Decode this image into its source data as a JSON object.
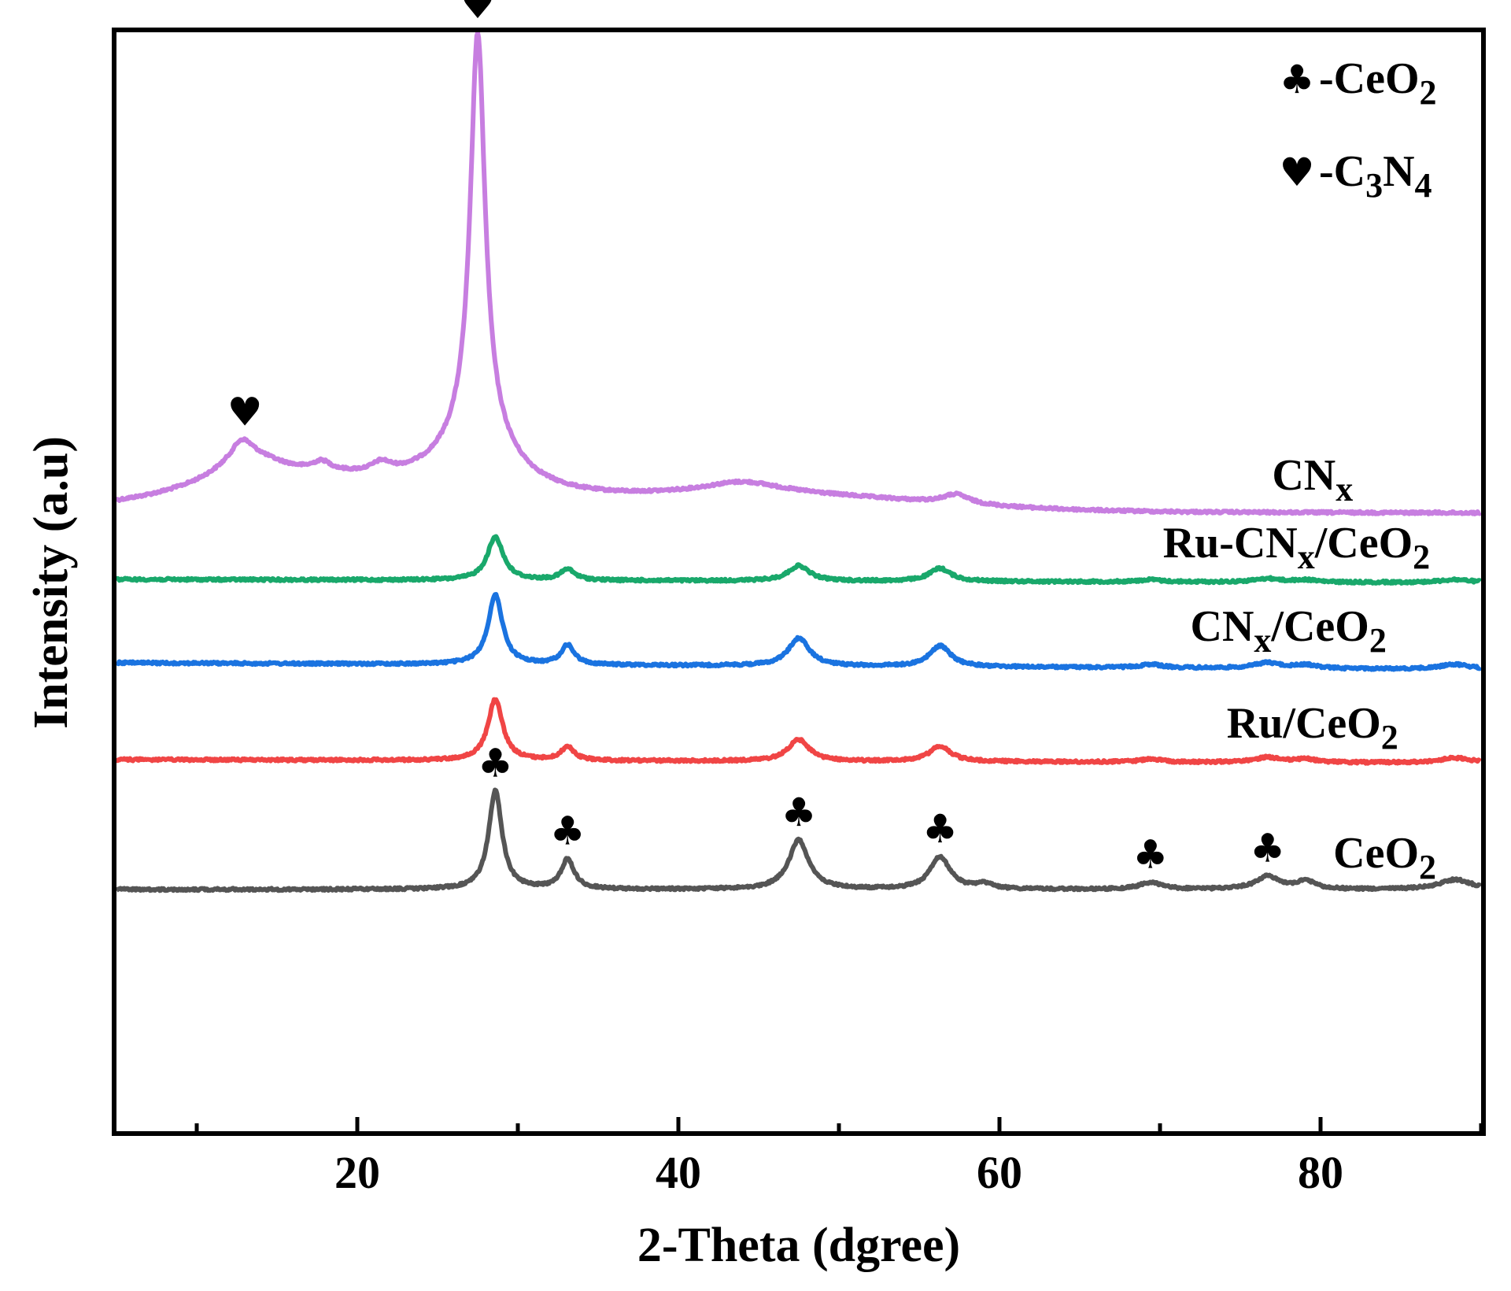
{
  "chart_data": {
    "type": "line",
    "title": "",
    "xlabel": "2-Theta (dgree)",
    "ylabel": "Intensity (a.u)",
    "xlim": [
      5,
      90
    ],
    "x_ticks": [
      20,
      40,
      60,
      80
    ],
    "x_tick_labels": [
      "20",
      "40",
      "60",
      "80"
    ],
    "grid": false,
    "legend": {
      "position": "top-right",
      "entries": [
        {
          "symbol": "♣",
          "name": "CeO",
          "sub": "2",
          "name2": "",
          "sub2": ""
        },
        {
          "symbol": "♥",
          "name": "C",
          "sub": "3",
          "name2": "N",
          "sub2": "4"
        }
      ]
    },
    "series": [
      {
        "name": "CN",
        "label_sub": "x",
        "label_rest": "",
        "label_rest_sub": "",
        "label_x": 79.5,
        "color": "#c77ee0",
        "baseline": 650,
        "scale": 3.0,
        "tail_slope": 0.02,
        "peaks": [
          {
            "x": 12.8,
            "h": 8,
            "w": 0.8
          },
          {
            "x": 13.2,
            "h": 12,
            "w": 2.8
          },
          {
            "x": 17.8,
            "h": 4,
            "w": 0.7
          },
          {
            "x": 21.5,
            "h": 4,
            "w": 0.7
          },
          {
            "x": 27.5,
            "h": 170,
            "w": 0.55
          },
          {
            "x": 27.5,
            "h": 25,
            "w": 2.6
          },
          {
            "x": 44.0,
            "h": 5,
            "w": 3.0
          },
          {
            "x": 57.3,
            "h": 4,
            "w": 1.0
          }
        ],
        "humps": [
          {
            "x": 18,
            "h": 12,
            "w": 8
          },
          {
            "x": 45,
            "h": 7,
            "w": 10
          }
        ]
      },
      {
        "name": "Ru-CN",
        "label_sub": "x",
        "label_rest": "/CeO",
        "label_rest_sub": "2",
        "label_x": 78.5,
        "color": "#19a86b",
        "baseline": 736,
        "scale": 0.55,
        "tail_slope": 0.05,
        "peaks": [
          {
            "x": 28.6,
            "h": 100,
            "w": 0.6
          },
          {
            "x": 33.1,
            "h": 25,
            "w": 0.55
          },
          {
            "x": 47.5,
            "h": 35,
            "w": 0.8
          },
          {
            "x": 56.3,
            "h": 30,
            "w": 0.8
          },
          {
            "x": 69.4,
            "h": 5,
            "w": 0.8
          },
          {
            "x": 76.7,
            "h": 8,
            "w": 1.0
          },
          {
            "x": 79.1,
            "h": 5,
            "w": 0.8
          },
          {
            "x": 88.4,
            "h": 7,
            "w": 1.2
          }
        ],
        "humps": []
      },
      {
        "name": "CN",
        "label_sub": "x",
        "label_rest": "/CeO",
        "label_rest_sub": "2",
        "label_x": 78.0,
        "color": "#1a73e0",
        "baseline": 842,
        "scale": 0.88,
        "tail_slope": 0.1,
        "peaks": [
          {
            "x": 28.6,
            "h": 100,
            "w": 0.55
          },
          {
            "x": 33.1,
            "h": 28,
            "w": 0.5
          },
          {
            "x": 47.5,
            "h": 40,
            "w": 0.8
          },
          {
            "x": 56.3,
            "h": 30,
            "w": 0.8
          },
          {
            "x": 69.4,
            "h": 5,
            "w": 0.8
          },
          {
            "x": 76.7,
            "h": 8,
            "w": 1.0
          },
          {
            "x": 79.1,
            "h": 5,
            "w": 0.8
          },
          {
            "x": 88.4,
            "h": 7,
            "w": 1.2
          }
        ],
        "humps": []
      },
      {
        "name": "Ru/CeO",
        "label_sub": "2",
        "label_rest": "",
        "label_rest_sub": "",
        "label_x": 79.5,
        "color": "#f04545",
        "baseline": 965,
        "scale": 0.78,
        "tail_slope": 0.05,
        "peaks": [
          {
            "x": 28.6,
            "h": 100,
            "w": 0.55
          },
          {
            "x": 33.1,
            "h": 22,
            "w": 0.5
          },
          {
            "x": 47.5,
            "h": 35,
            "w": 0.8
          },
          {
            "x": 56.3,
            "h": 25,
            "w": 0.8
          },
          {
            "x": 69.4,
            "h": 5,
            "w": 0.8
          },
          {
            "x": 76.7,
            "h": 8,
            "w": 1.0
          },
          {
            "x": 79.1,
            "h": 5,
            "w": 0.8
          },
          {
            "x": 88.4,
            "h": 8,
            "w": 1.2
          }
        ],
        "humps": []
      },
      {
        "name": "CeO",
        "label_sub": "2",
        "label_rest": "",
        "label_rest_sub": "",
        "label_x": 84.0,
        "color": "#555555",
        "baseline": 1130,
        "scale": 1.25,
        "tail_slope": 0.0,
        "peaks": [
          {
            "x": 28.6,
            "h": 100,
            "w": 0.5
          },
          {
            "x": 33.1,
            "h": 30,
            "w": 0.5
          },
          {
            "x": 47.5,
            "h": 50,
            "w": 0.75
          },
          {
            "x": 56.3,
            "h": 33,
            "w": 0.75
          },
          {
            "x": 59.1,
            "h": 5,
            "w": 0.6
          },
          {
            "x": 69.4,
            "h": 7,
            "w": 0.8
          },
          {
            "x": 76.7,
            "h": 13,
            "w": 0.9
          },
          {
            "x": 79.1,
            "h": 8,
            "w": 0.7
          },
          {
            "x": 88.4,
            "h": 10,
            "w": 1.2
          }
        ],
        "humps": []
      }
    ],
    "markers": [
      {
        "symbol": "♥",
        "x": 27.5,
        "series": 0
      },
      {
        "symbol": "♥",
        "x": 13.0,
        "series": 0
      },
      {
        "symbol": "♣",
        "x": 28.6,
        "series": 4
      },
      {
        "symbol": "♣",
        "x": 33.1,
        "series": 4
      },
      {
        "symbol": "♣",
        "x": 47.5,
        "series": 4
      },
      {
        "symbol": "♣",
        "x": 56.3,
        "series": 4
      },
      {
        "symbol": "♣",
        "x": 69.4,
        "series": 4
      },
      {
        "symbol": "♣",
        "x": 76.7,
        "series": 4
      }
    ]
  }
}
